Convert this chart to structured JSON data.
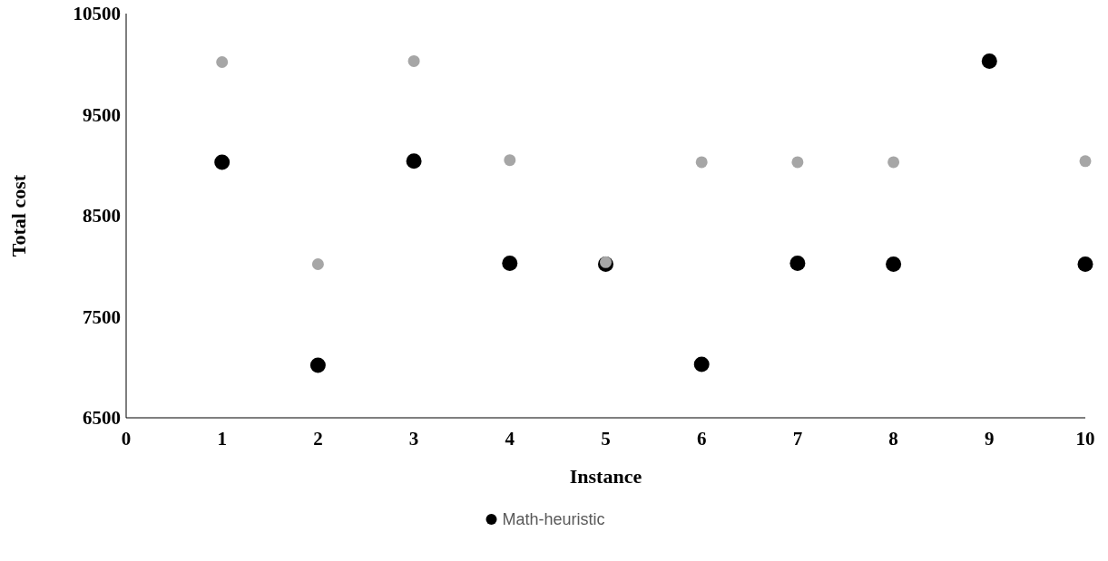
{
  "chart_data": {
    "type": "scatter",
    "xlabel": "Instance",
    "ylabel": "Total cost",
    "x": [
      1,
      2,
      3,
      4,
      5,
      6,
      7,
      8,
      9,
      10
    ],
    "series": [
      {
        "name": "Math-heuristic",
        "color": "#000000",
        "values": [
          9030,
          7020,
          9040,
          8030,
          8020,
          7030,
          8030,
          8020,
          10030,
          8020
        ]
      },
      {
        "color": "#a6a6a6",
        "values": [
          10020,
          8020,
          10030,
          9050,
          8040,
          9030,
          9030,
          9030,
          null,
          9040
        ]
      }
    ],
    "xlim": [
      0,
      10
    ],
    "xticks": [
      0,
      1,
      2,
      3,
      4,
      5,
      6,
      7,
      8,
      9,
      10
    ],
    "ylim": [
      6500,
      10500
    ],
    "yticks": [
      6500,
      7500,
      8500,
      9500,
      10500
    ],
    "grid": false,
    "legend": "bottom",
    "marker": "circle"
  }
}
